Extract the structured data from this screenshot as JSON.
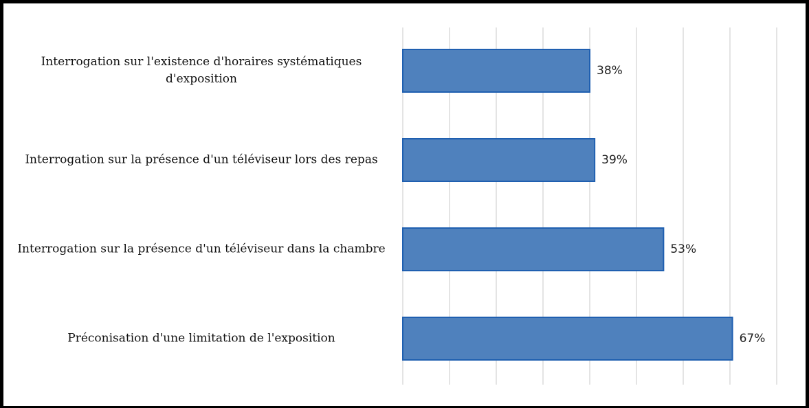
{
  "chart_data": {
    "type": "bar",
    "orientation": "horizontal",
    "categories": [
      "Interrogation sur l'existence d'horaires systématiques d'exposition",
      "Interrogation sur la présence d'un téléviseur lors des repas",
      "Interrogation sur la présence d'un téléviseur dans la chambre",
      "Préconisation d'une limitation de l'exposition"
    ],
    "values": [
      38,
      39,
      53,
      67
    ],
    "value_labels": [
      "38%",
      "39%",
      "53%",
      "67%"
    ],
    "color": "#4f81bd",
    "xlim": [
      0,
      76
    ],
    "xticks": [
      0,
      9.5,
      19,
      28.5,
      38,
      47.5,
      57,
      66.5,
      76
    ],
    "grid": true
  }
}
